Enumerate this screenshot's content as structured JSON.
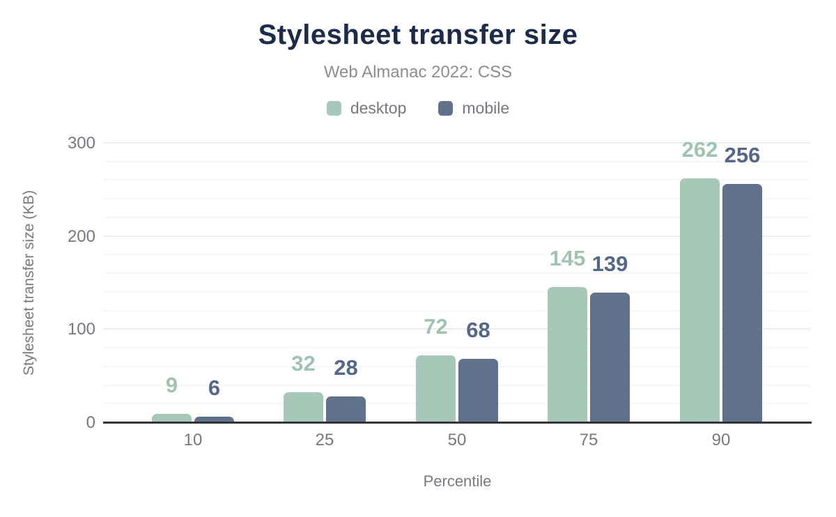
{
  "header": {
    "title": "Stylesheet transfer size",
    "subtitle": "Web Almanac 2022: CSS"
  },
  "chart_data": {
    "type": "bar",
    "title": "Stylesheet transfer size",
    "subtitle": "Web Almanac 2022: CSS",
    "categories": [
      "10",
      "25",
      "50",
      "75",
      "90"
    ],
    "series": [
      {
        "name": "desktop",
        "color": "#a7c8b8",
        "label_color": "#a0c3b1",
        "values": [
          9,
          32,
          72,
          145,
          262
        ]
      },
      {
        "name": "mobile",
        "color": "#5f718b",
        "label_color": "#556789",
        "values": [
          6,
          28,
          68,
          139,
          256
        ]
      }
    ],
    "xlabel": "Percentile",
    "ylabel": "Stylesheet transfer size (KB)",
    "ylim": [
      0,
      300
    ],
    "yticks": [
      0,
      100,
      200,
      300
    ],
    "minor_grid_step": 20,
    "grid": "horizontal-only",
    "legend_position": "top",
    "data_labels": true
  },
  "colors": {
    "title": "#1b2b49",
    "subtitle": "#8a8e93",
    "muted_text": "#75797e",
    "axis_line": "#33343a",
    "grid_major": "#ececec",
    "grid_minor": "#f6f6f6",
    "background": "#ffffff"
  }
}
